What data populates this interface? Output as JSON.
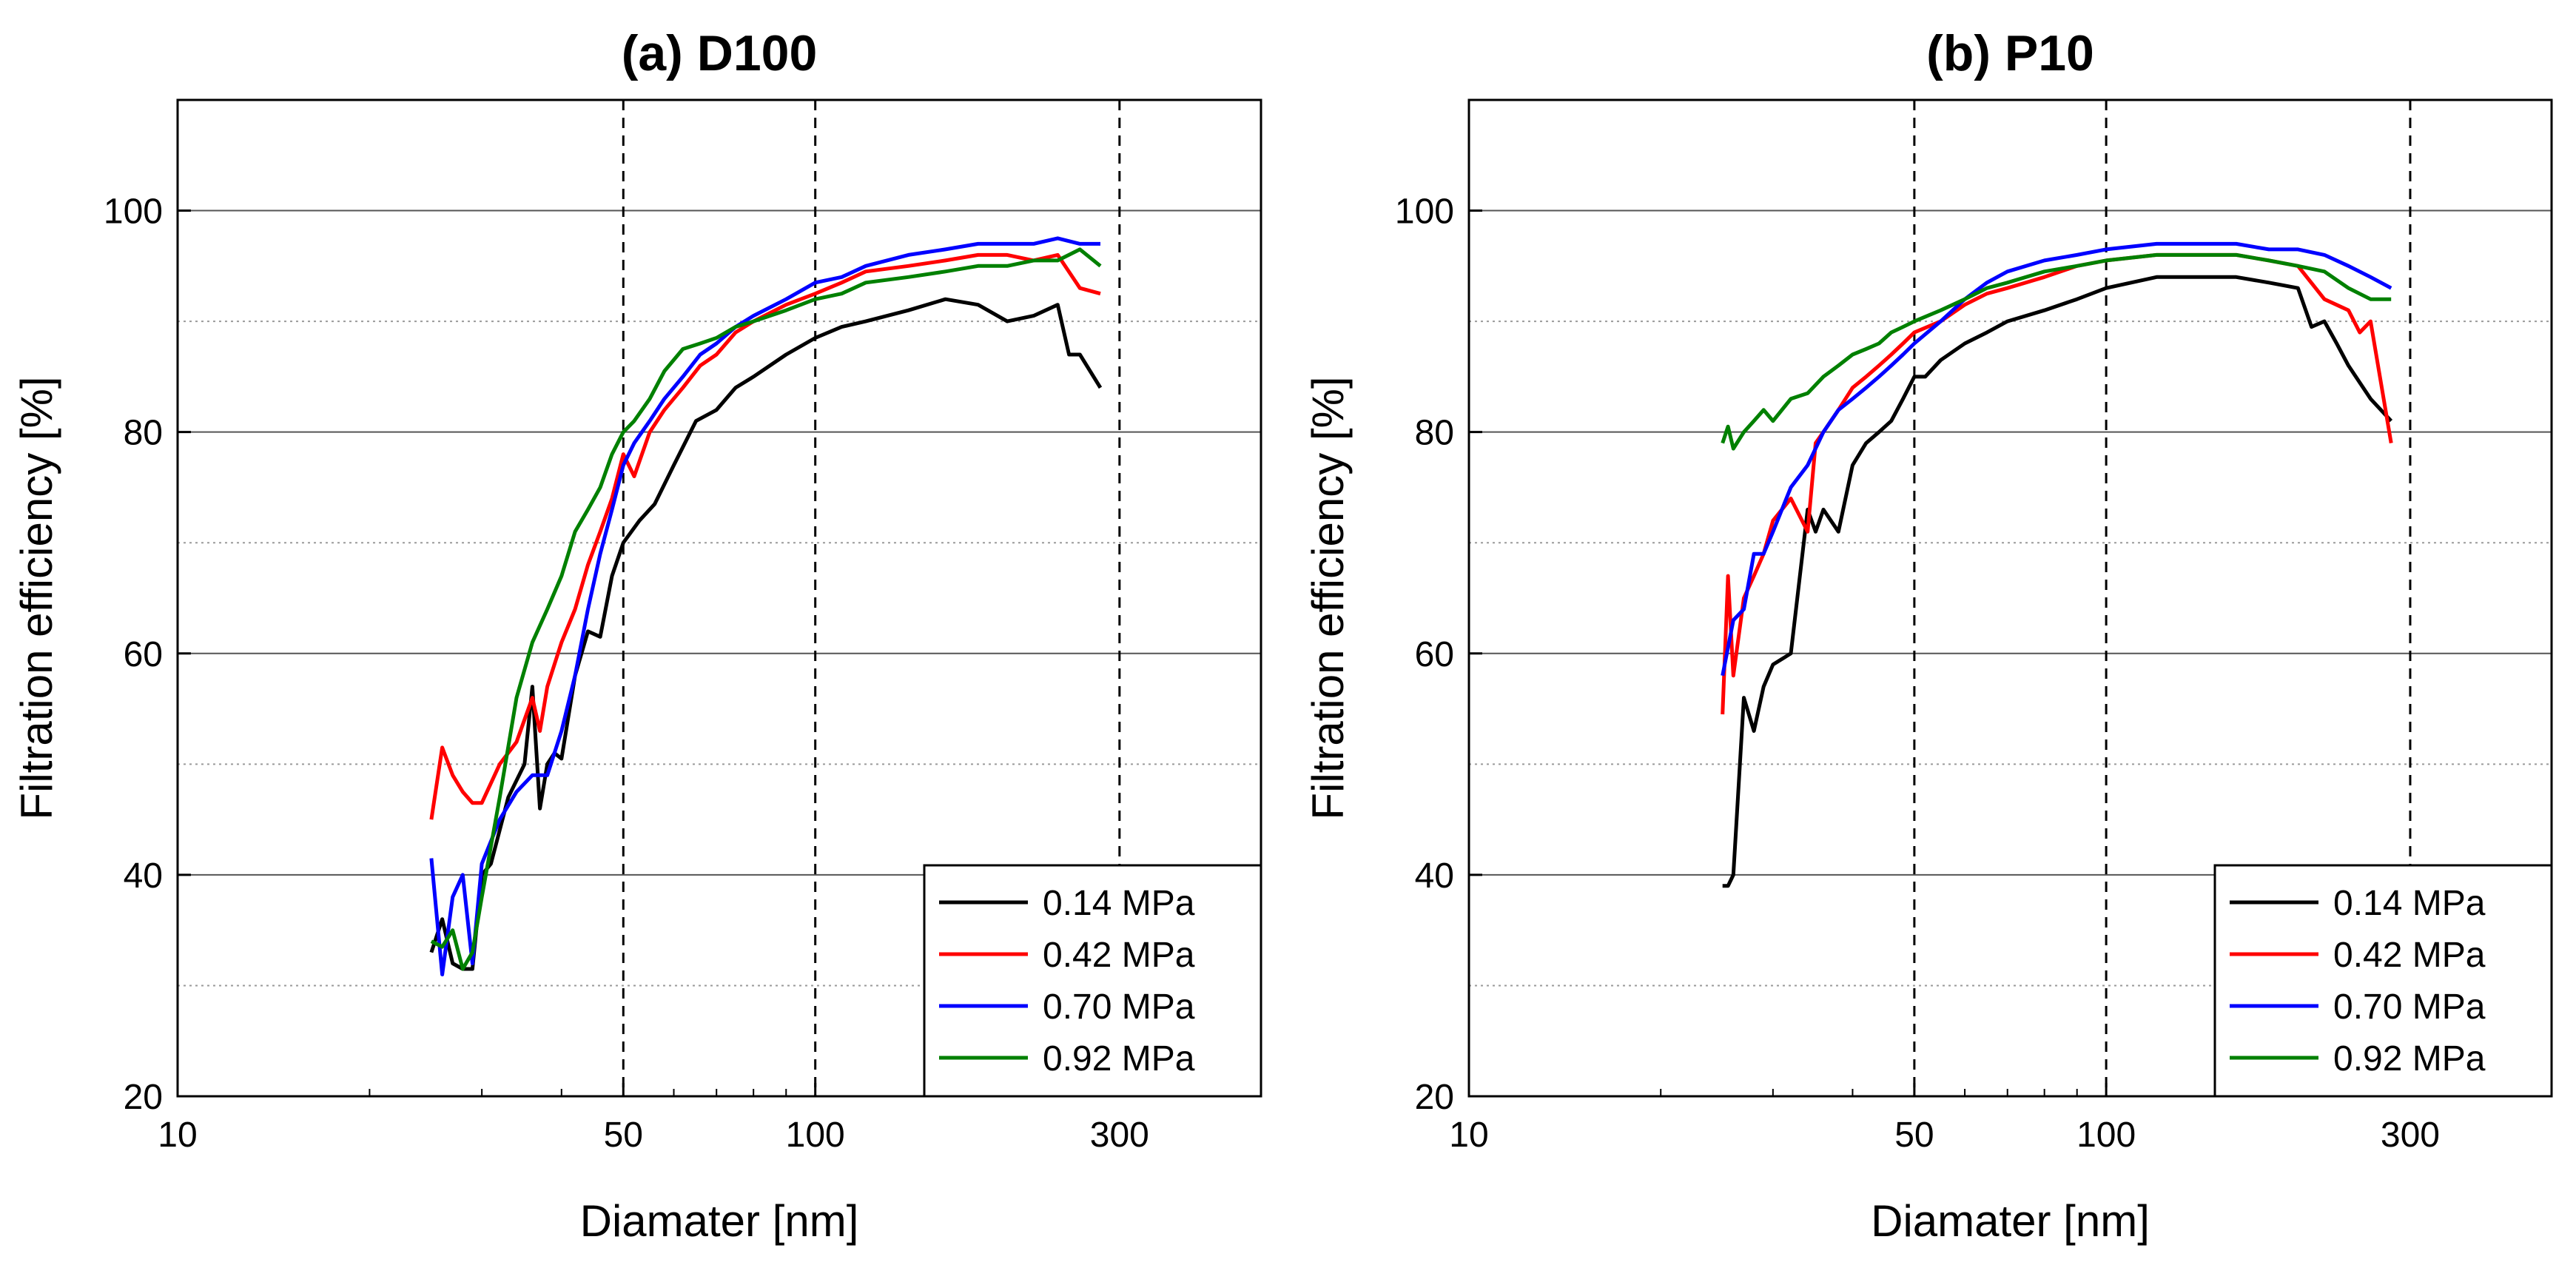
{
  "chart_data": [
    {
      "type": "line",
      "title": "(a) D100",
      "xlabel": "Diamater [nm]",
      "ylabel": "Filtration efficiency [%]",
      "xscale": "log",
      "xlim": [
        10,
        500
      ],
      "ylim": [
        20,
        110
      ],
      "xticks": [
        10,
        50,
        100,
        300
      ],
      "yticks": [
        20,
        40,
        60,
        80,
        100
      ],
      "legend_position": "bottom-right",
      "series": [
        {
          "name": "0.14 MPa",
          "color": "#000000",
          "x": [
            25,
            26,
            27,
            28,
            29,
            30,
            31,
            33,
            35,
            36,
            37,
            38,
            39,
            40,
            42,
            44,
            46,
            48,
            50,
            53,
            56,
            60,
            65,
            70,
            75,
            80,
            90,
            100,
            110,
            120,
            140,
            160,
            180,
            200,
            220,
            240,
            250,
            260,
            280
          ],
          "y": [
            33,
            36,
            32,
            31.5,
            31.5,
            40,
            41,
            47,
            50,
            57,
            46,
            50,
            51,
            50.5,
            58,
            62,
            61.5,
            67,
            70,
            72,
            73.5,
            77,
            81,
            82,
            84,
            85,
            87,
            88.5,
            89.5,
            90,
            91,
            92,
            91.5,
            90,
            90.5,
            91.5,
            87,
            87,
            84
          ]
        },
        {
          "name": "0.42 MPa",
          "color": "#ff0000",
          "x": [
            25,
            26,
            27,
            28,
            29,
            30,
            32,
            34,
            36,
            37,
            38,
            40,
            42,
            44,
            46,
            48,
            50,
            52,
            55,
            58,
            62,
            66,
            70,
            75,
            80,
            90,
            100,
            110,
            120,
            140,
            160,
            180,
            200,
            220,
            240,
            260,
            280
          ],
          "y": [
            45,
            51.5,
            49,
            47.5,
            46.5,
            46.5,
            50,
            52,
            56,
            53,
            57,
            61,
            64,
            68,
            71,
            74,
            78,
            76,
            80,
            82,
            84,
            86,
            87,
            89,
            90,
            91.5,
            92.5,
            93.5,
            94.5,
            95,
            95.5,
            96,
            96,
            95.5,
            96,
            93,
            92.5
          ]
        },
        {
          "name": "0.70 MPa",
          "color": "#0000ff",
          "x": [
            25,
            26,
            27,
            28,
            29,
            30,
            32,
            34,
            36,
            38,
            40,
            42,
            44,
            46,
            48,
            50,
            52,
            55,
            58,
            62,
            66,
            70,
            75,
            80,
            90,
            100,
            110,
            120,
            140,
            160,
            180,
            200,
            220,
            240,
            260,
            280
          ],
          "y": [
            41.5,
            31,
            38,
            40,
            32,
            41,
            45,
            47.5,
            49,
            49,
            53,
            58,
            64,
            69,
            73,
            77,
            79,
            81,
            83,
            85,
            87,
            88,
            89.5,
            90.5,
            92,
            93.5,
            94,
            95,
            96,
            96.5,
            97,
            97,
            97,
            97.5,
            97,
            97
          ]
        },
        {
          "name": "0.92 MPa",
          "color": "#008000",
          "x": [
            25,
            26,
            27,
            28,
            29,
            30,
            32,
            34,
            36,
            38,
            40,
            42,
            44,
            46,
            48,
            50,
            52,
            55,
            58,
            62,
            66,
            70,
            75,
            80,
            90,
            100,
            110,
            120,
            140,
            160,
            180,
            200,
            220,
            240,
            260,
            280
          ],
          "y": [
            34,
            33.5,
            35,
            31.5,
            33,
            38,
            47,
            56,
            61,
            64,
            67,
            71,
            73,
            75,
            78,
            80,
            81,
            83,
            85.5,
            87.5,
            88,
            88.5,
            89.5,
            90,
            91,
            92,
            92.5,
            93.5,
            94,
            94.5,
            95,
            95,
            95.5,
            95.5,
            96.5,
            95
          ]
        }
      ]
    },
    {
      "type": "line",
      "title": "(b) P10",
      "xlabel": "Diamater [nm]",
      "ylabel": "Filtration efficiency [%]",
      "xscale": "log",
      "xlim": [
        10,
        500
      ],
      "ylim": [
        20,
        110
      ],
      "xticks": [
        10,
        50,
        100,
        300
      ],
      "yticks": [
        20,
        40,
        60,
        80,
        100
      ],
      "legend_position": "bottom-right",
      "series": [
        {
          "name": "0.14 MPa",
          "color": "#000000",
          "x": [
            25,
            25.5,
            26,
            27,
            28,
            29,
            30,
            32,
            34,
            35,
            36,
            38,
            40,
            42,
            44,
            46,
            48,
            50,
            52,
            55,
            60,
            65,
            70,
            80,
            90,
            100,
            120,
            140,
            160,
            180,
            200,
            210,
            220,
            230,
            240,
            260,
            280
          ],
          "y": [
            39,
            39,
            40,
            56,
            53,
            57,
            59,
            60,
            73,
            71,
            73,
            71,
            77,
            79,
            80,
            81,
            83,
            85,
            85,
            86.5,
            88,
            89,
            90,
            91,
            92,
            93,
            94,
            94,
            94,
            93.5,
            93,
            89.5,
            90,
            88,
            86,
            83,
            81
          ]
        },
        {
          "name": "0.42 MPa",
          "color": "#ff0000",
          "x": [
            25,
            25.5,
            26,
            27,
            28,
            29,
            30,
            32,
            34,
            35,
            36,
            38,
            40,
            42,
            44,
            46,
            48,
            50,
            55,
            60,
            65,
            70,
            80,
            90,
            100,
            120,
            140,
            160,
            180,
            200,
            220,
            240,
            250,
            260,
            280
          ],
          "y": [
            54.5,
            67,
            58,
            65,
            67,
            69,
            72,
            74,
            71,
            79,
            80,
            82,
            84,
            85,
            86,
            87,
            88,
            89,
            90,
            91.5,
            92.5,
            93,
            94,
            95,
            95.5,
            96,
            96,
            96,
            95.5,
            95,
            92,
            91,
            89,
            90,
            79
          ]
        },
        {
          "name": "0.70 MPa",
          "color": "#0000ff",
          "x": [
            25,
            26,
            27,
            28,
            29,
            30,
            32,
            34,
            36,
            38,
            40,
            42,
            44,
            46,
            48,
            50,
            55,
            60,
            65,
            70,
            80,
            90,
            100,
            120,
            140,
            160,
            180,
            200,
            220,
            240,
            260,
            280
          ],
          "y": [
            58,
            63,
            64,
            69,
            69,
            71,
            75,
            77,
            80,
            82,
            83,
            84,
            85,
            86,
            87,
            88,
            90,
            92,
            93.5,
            94.5,
            95.5,
            96,
            96.5,
            97,
            97,
            97,
            96.5,
            96.5,
            96,
            95,
            94,
            93
          ]
        },
        {
          "name": "0.92 MPa",
          "color": "#008000",
          "x": [
            25,
            25.5,
            26,
            27,
            28,
            29,
            30,
            32,
            34,
            36,
            38,
            40,
            42,
            44,
            46,
            48,
            50,
            55,
            60,
            65,
            70,
            80,
            90,
            100,
            120,
            140,
            160,
            180,
            200,
            220,
            240,
            260,
            280
          ],
          "y": [
            79,
            80.5,
            78.5,
            80,
            81,
            82,
            81,
            83,
            83.5,
            85,
            86,
            87,
            87.5,
            88,
            89,
            89.5,
            90,
            91,
            92,
            93,
            93.5,
            94.5,
            95,
            95.5,
            96,
            96,
            96,
            95.5,
            95,
            94.5,
            93,
            92,
            92
          ]
        }
      ]
    }
  ]
}
